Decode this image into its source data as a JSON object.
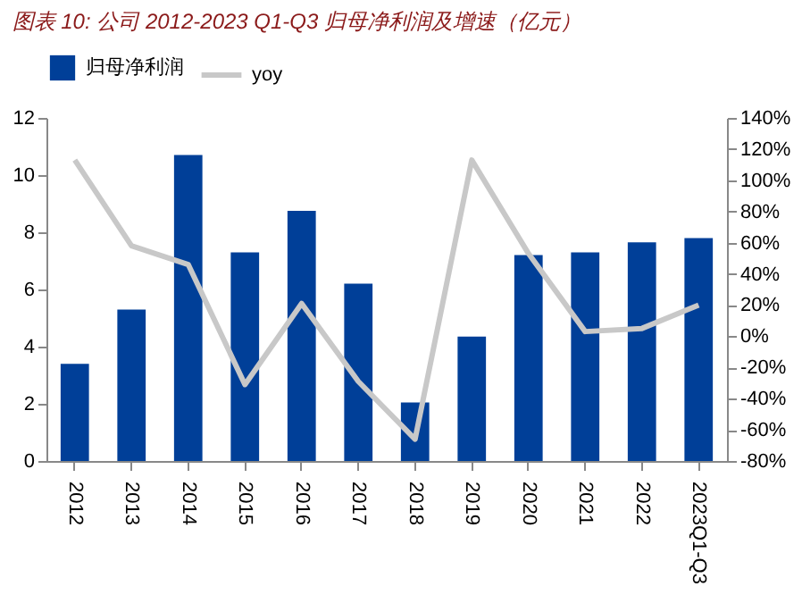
{
  "chart_data": {
    "type": "bar",
    "title": "图表 10:  公司 2012-2023 Q1-Q3 归母净利润及增速（亿元）",
    "categories": [
      "2012",
      "2013",
      "2014",
      "2015",
      "2016",
      "2017",
      "2018",
      "2019",
      "2020",
      "2021",
      "2022",
      "2023Q1-Q3"
    ],
    "series": [
      {
        "name": "归母净利润",
        "color": "#003f98",
        "values": [
          3.4,
          5.3,
          10.7,
          7.3,
          8.75,
          6.2,
          2.05,
          4.35,
          7.2,
          7.3,
          7.65,
          7.8
        ]
      },
      {
        "name": "yoy",
        "type": "line",
        "axis": "y2",
        "color": "#c8c8c8",
        "values": [
          113,
          58,
          46,
          -31,
          21,
          -29,
          -66,
          113,
          53,
          3,
          5,
          20
        ]
      }
    ],
    "ylim": [
      0,
      12
    ],
    "yticks": [
      0,
      2,
      4,
      6,
      8,
      10,
      12
    ],
    "y2lim": [
      -80,
      140
    ],
    "y2ticks": [
      {
        "value": -80,
        "label": "-80%"
      },
      {
        "value": -60,
        "label": "-60%"
      },
      {
        "value": -40,
        "label": "-40%"
      },
      {
        "value": -20,
        "label": "-20%"
      },
      {
        "value": 0,
        "label": "0%"
      },
      {
        "value": 20,
        "label": "20%"
      },
      {
        "value": 40,
        "label": "40%"
      },
      {
        "value": 60,
        "label": "60%"
      },
      {
        "value": 80,
        "label": "80%"
      },
      {
        "value": 100,
        "label": "100%"
      },
      {
        "value": 120,
        "label": "120%"
      },
      {
        "value": 140,
        "label": "140%"
      }
    ],
    "legend": "top",
    "grid": false
  }
}
